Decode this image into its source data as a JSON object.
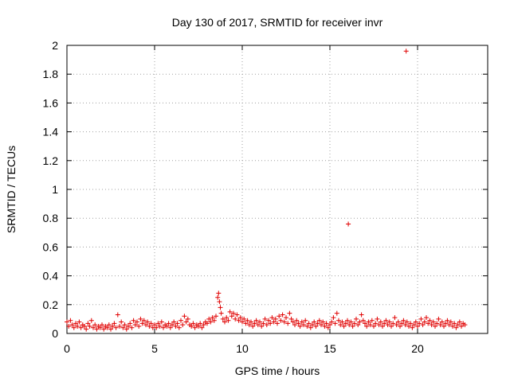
{
  "chart_data": {
    "type": "scatter",
    "title": "Day 130 of 2017, SRMTID for receiver invr",
    "xlabel": "GPS time / hours",
    "ylabel": "SRMTID / TECUs",
    "xlim": [
      0,
      24
    ],
    "ylim": [
      0,
      2
    ],
    "xticks": [
      "0",
      "5",
      "10",
      "15",
      "20"
    ],
    "yticks": [
      "0",
      "0.2",
      "0.4",
      "0.6",
      "0.8",
      "1",
      "1.2",
      "1.4",
      "1.6",
      "1.8",
      "2"
    ],
    "grid": true,
    "marker": "plus",
    "color": "#e00000",
    "series": [
      {
        "points": [
          [
            0.0,
            0.08
          ],
          [
            0.1,
            0.05
          ],
          [
            0.2,
            0.09
          ],
          [
            0.3,
            0.06
          ],
          [
            0.4,
            0.04
          ],
          [
            0.5,
            0.07
          ],
          [
            0.6,
            0.05
          ],
          [
            0.7,
            0.08
          ],
          [
            0.8,
            0.04
          ],
          [
            0.9,
            0.06
          ],
          [
            1.0,
            0.05
          ],
          [
            1.1,
            0.03
          ],
          [
            1.2,
            0.07
          ],
          [
            1.3,
            0.05
          ],
          [
            1.4,
            0.09
          ],
          [
            1.5,
            0.04
          ],
          [
            1.6,
            0.06
          ],
          [
            1.7,
            0.03
          ],
          [
            1.8,
            0.05
          ],
          [
            1.9,
            0.04
          ],
          [
            2.0,
            0.06
          ],
          [
            2.1,
            0.03
          ],
          [
            2.2,
            0.05
          ],
          [
            2.3,
            0.04
          ],
          [
            2.4,
            0.06
          ],
          [
            2.5,
            0.03
          ],
          [
            2.6,
            0.05
          ],
          [
            2.7,
            0.07
          ],
          [
            2.8,
            0.04
          ],
          [
            2.9,
            0.13
          ],
          [
            3.0,
            0.05
          ],
          [
            3.1,
            0.08
          ],
          [
            3.2,
            0.04
          ],
          [
            3.3,
            0.06
          ],
          [
            3.4,
            0.03
          ],
          [
            3.5,
            0.05
          ],
          [
            3.6,
            0.07
          ],
          [
            3.7,
            0.04
          ],
          [
            3.8,
            0.09
          ],
          [
            3.9,
            0.06
          ],
          [
            4.0,
            0.08
          ],
          [
            4.1,
            0.05
          ],
          [
            4.2,
            0.1
          ],
          [
            4.3,
            0.07
          ],
          [
            4.4,
            0.09
          ],
          [
            4.5,
            0.06
          ],
          [
            4.6,
            0.08
          ],
          [
            4.7,
            0.05
          ],
          [
            4.8,
            0.07
          ],
          [
            4.9,
            0.04
          ],
          [
            5.0,
            0.06
          ],
          [
            5.1,
            0.04
          ],
          [
            5.2,
            0.07
          ],
          [
            5.3,
            0.05
          ],
          [
            5.4,
            0.08
          ],
          [
            5.5,
            0.04
          ],
          [
            5.6,
            0.06
          ],
          [
            5.7,
            0.05
          ],
          [
            5.8,
            0.07
          ],
          [
            5.9,
            0.04
          ],
          [
            6.0,
            0.06
          ],
          [
            6.1,
            0.08
          ],
          [
            6.2,
            0.05
          ],
          [
            6.3,
            0.07
          ],
          [
            6.4,
            0.04
          ],
          [
            6.5,
            0.09
          ],
          [
            6.6,
            0.06
          ],
          [
            6.7,
            0.12
          ],
          [
            6.8,
            0.08
          ],
          [
            6.9,
            0.1
          ],
          [
            7.0,
            0.06
          ],
          [
            7.1,
            0.05
          ],
          [
            7.2,
            0.07
          ],
          [
            7.3,
            0.04
          ],
          [
            7.4,
            0.06
          ],
          [
            7.5,
            0.05
          ],
          [
            7.6,
            0.07
          ],
          [
            7.7,
            0.04
          ],
          [
            7.8,
            0.06
          ],
          [
            7.9,
            0.08
          ],
          [
            8.0,
            0.07
          ],
          [
            8.1,
            0.1
          ],
          [
            8.2,
            0.08
          ],
          [
            8.3,
            0.11
          ],
          [
            8.4,
            0.09
          ],
          [
            8.5,
            0.12
          ],
          [
            8.6,
            0.25
          ],
          [
            8.65,
            0.28
          ],
          [
            8.7,
            0.22
          ],
          [
            8.75,
            0.18
          ],
          [
            8.8,
            0.14
          ],
          [
            8.9,
            0.1
          ],
          [
            9.0,
            0.08
          ],
          [
            9.1,
            0.11
          ],
          [
            9.2,
            0.09
          ],
          [
            9.3,
            0.15
          ],
          [
            9.4,
            0.12
          ],
          [
            9.5,
            0.14
          ],
          [
            9.6,
            0.1
          ],
          [
            9.7,
            0.13
          ],
          [
            9.8,
            0.09
          ],
          [
            9.9,
            0.11
          ],
          [
            10.0,
            0.08
          ],
          [
            10.1,
            0.1
          ],
          [
            10.2,
            0.07
          ],
          [
            10.3,
            0.09
          ],
          [
            10.4,
            0.06
          ],
          [
            10.5,
            0.08
          ],
          [
            10.6,
            0.05
          ],
          [
            10.7,
            0.07
          ],
          [
            10.8,
            0.09
          ],
          [
            10.9,
            0.06
          ],
          [
            11.0,
            0.08
          ],
          [
            11.1,
            0.05
          ],
          [
            11.2,
            0.07
          ],
          [
            11.3,
            0.1
          ],
          [
            11.4,
            0.06
          ],
          [
            11.5,
            0.09
          ],
          [
            11.6,
            0.07
          ],
          [
            11.7,
            0.11
          ],
          [
            11.8,
            0.08
          ],
          [
            11.9,
            0.1
          ],
          [
            12.0,
            0.07
          ],
          [
            12.1,
            0.12
          ],
          [
            12.2,
            0.09
          ],
          [
            12.3,
            0.13
          ],
          [
            12.4,
            0.08
          ],
          [
            12.5,
            0.11
          ],
          [
            12.6,
            0.07
          ],
          [
            12.7,
            0.14
          ],
          [
            12.8,
            0.1
          ],
          [
            12.9,
            0.08
          ],
          [
            13.0,
            0.06
          ],
          [
            13.1,
            0.09
          ],
          [
            13.2,
            0.07
          ],
          [
            13.3,
            0.05
          ],
          [
            13.4,
            0.08
          ],
          [
            13.5,
            0.06
          ],
          [
            13.6,
            0.09
          ],
          [
            13.7,
            0.05
          ],
          [
            13.8,
            0.07
          ],
          [
            13.9,
            0.04
          ],
          [
            14.0,
            0.06
          ],
          [
            14.1,
            0.08
          ],
          [
            14.2,
            0.05
          ],
          [
            14.3,
            0.07
          ],
          [
            14.4,
            0.09
          ],
          [
            14.5,
            0.06
          ],
          [
            14.6,
            0.08
          ],
          [
            14.7,
            0.05
          ],
          [
            14.8,
            0.07
          ],
          [
            14.9,
            0.04
          ],
          [
            15.0,
            0.06
          ],
          [
            15.1,
            0.08
          ],
          [
            15.2,
            0.11
          ],
          [
            15.3,
            0.07
          ],
          [
            15.4,
            0.14
          ],
          [
            15.5,
            0.09
          ],
          [
            15.6,
            0.06
          ],
          [
            15.7,
            0.08
          ],
          [
            15.8,
            0.05
          ],
          [
            15.9,
            0.07
          ],
          [
            16.0,
            0.09
          ],
          [
            16.05,
            0.76
          ],
          [
            16.1,
            0.06
          ],
          [
            16.2,
            0.08
          ],
          [
            16.3,
            0.05
          ],
          [
            16.4,
            0.07
          ],
          [
            16.5,
            0.1
          ],
          [
            16.6,
            0.06
          ],
          [
            16.7,
            0.08
          ],
          [
            16.8,
            0.13
          ],
          [
            16.9,
            0.09
          ],
          [
            17.0,
            0.07
          ],
          [
            17.1,
            0.05
          ],
          [
            17.2,
            0.08
          ],
          [
            17.3,
            0.06
          ],
          [
            17.4,
            0.09
          ],
          [
            17.5,
            0.05
          ],
          [
            17.6,
            0.07
          ],
          [
            17.7,
            0.1
          ],
          [
            17.8,
            0.06
          ],
          [
            17.9,
            0.08
          ],
          [
            18.0,
            0.05
          ],
          [
            18.1,
            0.07
          ],
          [
            18.2,
            0.09
          ],
          [
            18.3,
            0.06
          ],
          [
            18.4,
            0.08
          ],
          [
            18.5,
            0.05
          ],
          [
            18.6,
            0.07
          ],
          [
            18.7,
            0.11
          ],
          [
            18.8,
            0.06
          ],
          [
            18.9,
            0.08
          ],
          [
            19.0,
            0.05
          ],
          [
            19.1,
            0.07
          ],
          [
            19.2,
            0.09
          ],
          [
            19.3,
            0.06
          ],
          [
            19.35,
            1.96
          ],
          [
            19.4,
            0.08
          ],
          [
            19.5,
            0.05
          ],
          [
            19.6,
            0.07
          ],
          [
            19.7,
            0.04
          ],
          [
            19.8,
            0.06
          ],
          [
            19.9,
            0.08
          ],
          [
            20.0,
            0.05
          ],
          [
            20.1,
            0.07
          ],
          [
            20.2,
            0.1
          ],
          [
            20.3,
            0.06
          ],
          [
            20.4,
            0.08
          ],
          [
            20.5,
            0.11
          ],
          [
            20.6,
            0.07
          ],
          [
            20.7,
            0.09
          ],
          [
            20.8,
            0.06
          ],
          [
            20.9,
            0.08
          ],
          [
            21.0,
            0.05
          ],
          [
            21.1,
            0.07
          ],
          [
            21.2,
            0.1
          ],
          [
            21.3,
            0.06
          ],
          [
            21.4,
            0.08
          ],
          [
            21.5,
            0.05
          ],
          [
            21.6,
            0.07
          ],
          [
            21.7,
            0.09
          ],
          [
            21.8,
            0.06
          ],
          [
            21.9,
            0.08
          ],
          [
            22.0,
            0.05
          ],
          [
            22.1,
            0.07
          ],
          [
            22.2,
            0.04
          ],
          [
            22.3,
            0.06
          ],
          [
            22.4,
            0.08
          ],
          [
            22.5,
            0.05
          ],
          [
            22.6,
            0.07
          ],
          [
            22.7,
            0.06
          ]
        ]
      }
    ]
  }
}
